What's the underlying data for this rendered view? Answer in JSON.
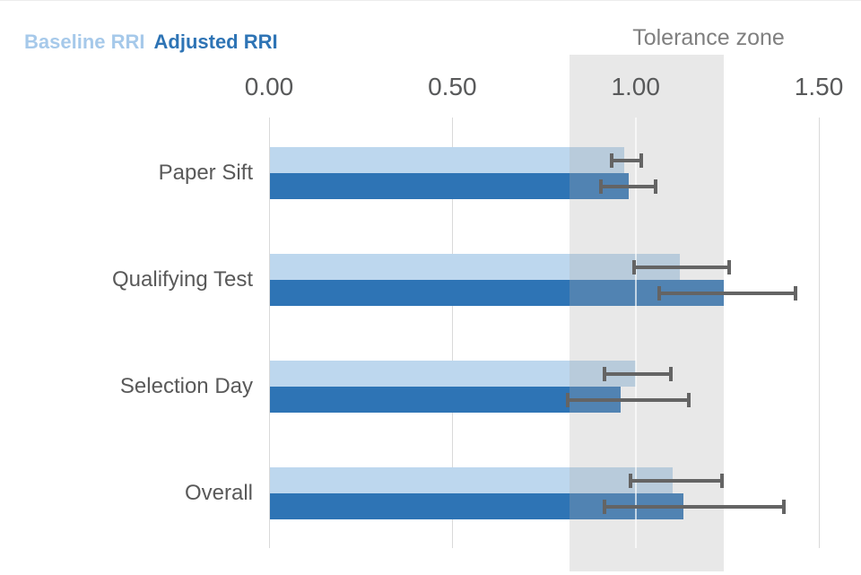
{
  "chart_data": {
    "type": "bar",
    "orientation": "horizontal",
    "categories": [
      "Paper Sift",
      "Qualifying Test",
      "Selection Day",
      "Overall"
    ],
    "series": [
      {
        "name": "Baseline RRI",
        "color": "#BDD7EE",
        "legend_text_color": "#A6C9EA",
        "values": [
          0.97,
          1.12,
          1.0,
          1.1
        ],
        "error_low": [
          0.93,
          0.99,
          0.91,
          0.98
        ],
        "error_high": [
          1.02,
          1.26,
          1.1,
          1.24
        ]
      },
      {
        "name": "Adjusted RRI",
        "color": "#2E74B5",
        "legend_text_color": "#2E74B5",
        "values": [
          0.98,
          1.24,
          0.96,
          1.13
        ],
        "error_low": [
          0.9,
          1.06,
          0.81,
          0.91
        ],
        "error_high": [
          1.06,
          1.44,
          1.15,
          1.41
        ]
      }
    ],
    "tolerance_zone": {
      "label": "Tolerance zone",
      "from": 0.82,
      "to": 1.24,
      "overlay_color": "rgba(174,174,174,0.28)"
    },
    "x_axis": {
      "min": 0,
      "max": 1.5,
      "ticks": [
        0,
        0.5,
        1.0,
        1.5
      ],
      "tick_labels": [
        "0.00",
        "0.50",
        "1.00",
        "1.50"
      ]
    },
    "grid": true,
    "legend_position": "top-left"
  },
  "colors": {
    "gridline": "#D9D9D9",
    "white_gridline": "rgba(255,255,255,0.65)",
    "tick_text": "#58595A",
    "category_text": "#595959",
    "tolerance_text": "#7F7F7F",
    "error_bar": "#646464",
    "background": "#FFFFFF"
  }
}
